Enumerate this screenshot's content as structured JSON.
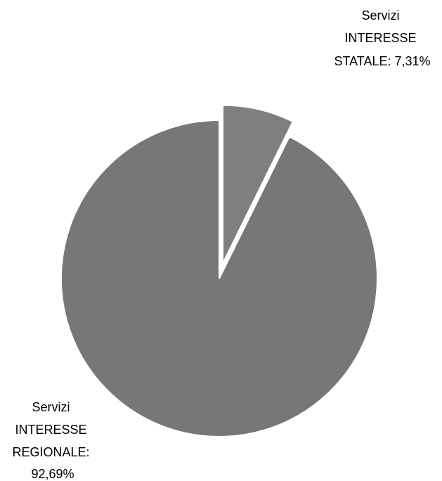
{
  "chart_data": {
    "type": "pie",
    "title": "",
    "start_angle_deg": 0,
    "direction": "clockwise",
    "exploded_slice": "Servizi INTERESSE STATALE",
    "slices": [
      {
        "name": "Servizi INTERESSE STATALE",
        "value": 7.31,
        "label_lines": [
          "Servizi",
          "INTERESSE",
          "STATALE: 7,31%"
        ],
        "color": "#7f7f7f"
      },
      {
        "name": "Servizi INTERESSE REGIONALE",
        "value": 92.69,
        "label_lines": [
          "Servizi",
          "INTERESSE",
          "REGIONALE:",
          "92,69%"
        ],
        "color": "#777777"
      }
    ]
  }
}
